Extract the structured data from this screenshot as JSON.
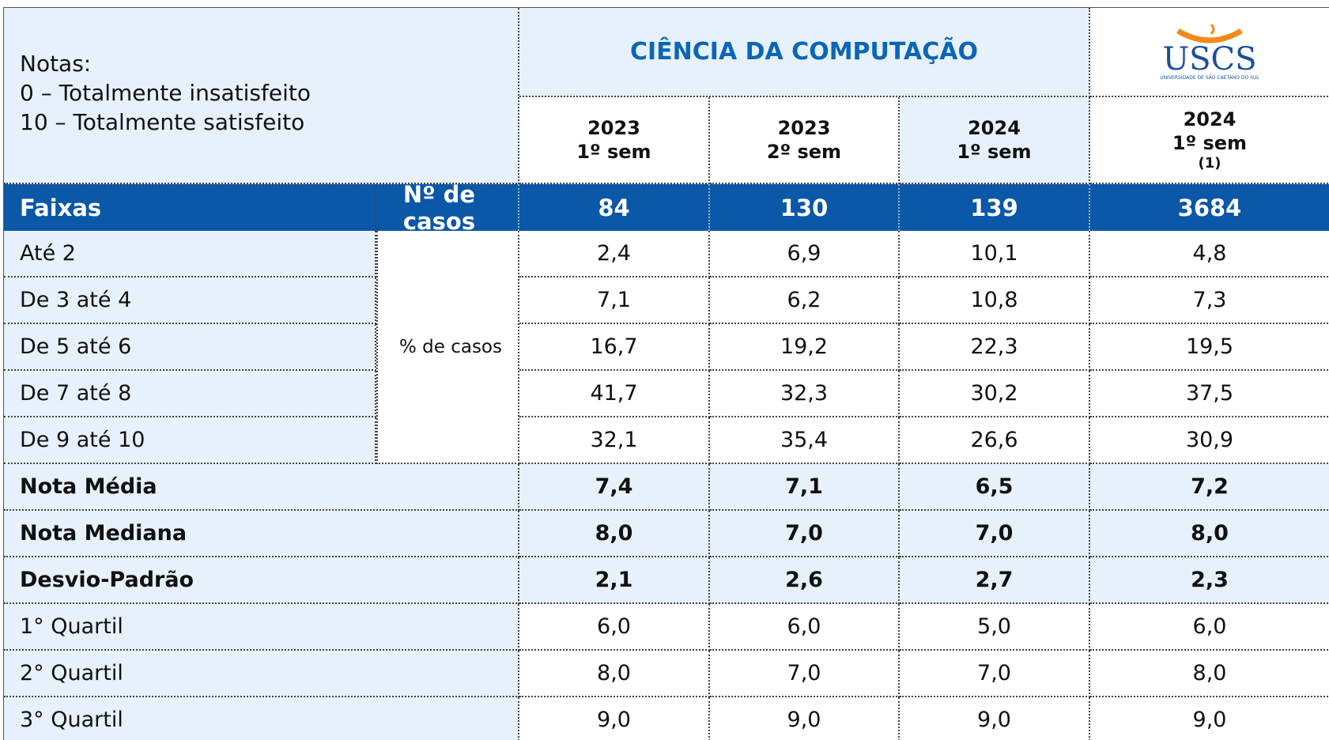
{
  "notes": [
    "Notas:",
    "0 – Totalmente insatisfeito",
    "10 – Totalmente satisfeito"
  ],
  "course_title": "CIÊNCIA DA COMPUTAÇÃO",
  "logo": {
    "name": "USCS",
    "subtitle": "UNIVERSIDADE DE SÃO CAETANO DO SUL"
  },
  "columns": [
    {
      "year": "2023",
      "sem": "1º sem"
    },
    {
      "year": "2023",
      "sem": "2º sem"
    },
    {
      "year": "2024",
      "sem": "1º sem"
    },
    {
      "year": "2024",
      "sem": "1º sem",
      "note": "(1)"
    }
  ],
  "header_row": {
    "label": "Faixas",
    "count_label": "Nº de casos",
    "counts": [
      "84",
      "130",
      "139",
      "3684"
    ]
  },
  "percent_label": "% de casos",
  "range_rows": [
    {
      "label": "Até 2",
      "values": [
        "2,4",
        "6,9",
        "10,1",
        "4,8"
      ]
    },
    {
      "label": "De 3 até 4",
      "values": [
        "7,1",
        "6,2",
        "10,8",
        "7,3"
      ]
    },
    {
      "label": "De 5 até 6",
      "values": [
        "16,7",
        "19,2",
        "22,3",
        "19,5"
      ]
    },
    {
      "label": "De 7 até 8",
      "values": [
        "41,7",
        "32,3",
        "30,2",
        "37,5"
      ]
    },
    {
      "label": "De 9 até 10",
      "values": [
        "32,1",
        "35,4",
        "26,6",
        "30,9"
      ]
    }
  ],
  "stat_rows": [
    {
      "label": "Nota Média",
      "values": [
        "7,4",
        "7,1",
        "6,5",
        "7,2"
      ],
      "bold": true
    },
    {
      "label": "Nota Mediana",
      "values": [
        "8,0",
        "7,0",
        "7,0",
        "8,0"
      ],
      "bold": true
    },
    {
      "label": "Desvio-Padrão",
      "values": [
        "2,1",
        "2,6",
        "2,7",
        "2,3"
      ],
      "bold": true
    },
    {
      "label": "1° Quartil",
      "values": [
        "6,0",
        "6,0",
        "5,0",
        "6,0"
      ],
      "bold": false
    },
    {
      "label": "2° Quartil",
      "values": [
        "8,0",
        "7,0",
        "7,0",
        "8,0"
      ],
      "bold": false
    },
    {
      "label": "3° Quartil",
      "values": [
        "9,0",
        "9,0",
        "9,0",
        "9,0"
      ],
      "bold": false
    }
  ]
}
